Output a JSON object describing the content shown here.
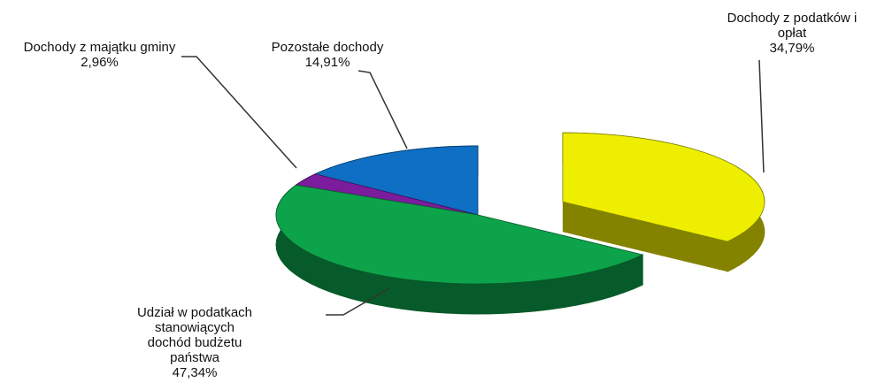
{
  "chart_data": {
    "type": "pie3d",
    "categories": [
      "Dochody z podatków i opłat",
      "Udział w podatkach stanowiących dochód budżetu państwa",
      "Dochody z majątku gminy",
      "Pozostałe dochody"
    ],
    "values": [
      34.79,
      47.34,
      2.96,
      14.91
    ],
    "value_labels": [
      "34,79%",
      "47,34%",
      "2,96%",
      "14,91%"
    ],
    "colors": [
      "#eeee00",
      "#0da34a",
      "#7b1c9c",
      "#0e6fc4"
    ]
  }
}
